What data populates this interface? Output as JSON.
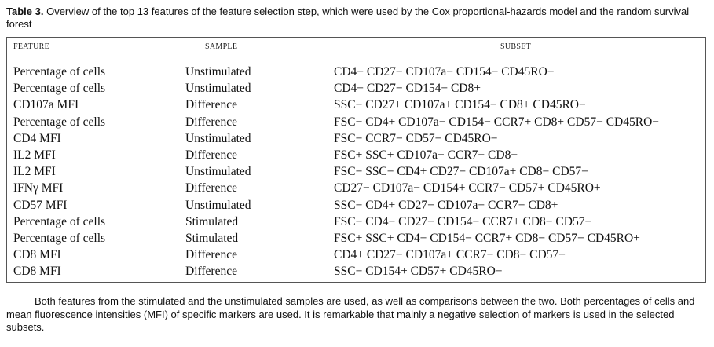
{
  "caption": {
    "label": "Table 3.",
    "text": "Overview of the top 13 features of the feature selection step, which were used by the Cox proportional-hazards model and the random survival forest"
  },
  "table": {
    "headers": {
      "feature": "FEATURE",
      "sample": "SAMPLE",
      "subset": "SUBSET"
    },
    "rows": [
      {
        "feature": "Percentage of cells",
        "sample": "Unstimulated",
        "subset": "CD4− CD27− CD107a− CD154− CD45RO−"
      },
      {
        "feature": "Percentage of cells",
        "sample": "Unstimulated",
        "subset": "CD4− CD27− CD154− CD8+"
      },
      {
        "feature": "CD107a MFI",
        "sample": "Difference",
        "subset": "SSC− CD27+ CD107a+ CD154− CD8+ CD45RO−"
      },
      {
        "feature": "Percentage of cells",
        "sample": "Difference",
        "subset": "FSC− CD4+ CD107a− CD154− CCR7+ CD8+ CD57− CD45RO−"
      },
      {
        "feature": "CD4 MFI",
        "sample": "Unstimulated",
        "subset": "FSC− CCR7− CD57− CD45RO−"
      },
      {
        "feature": "IL2 MFI",
        "sample": "Difference",
        "subset": "FSC+ SSC+ CD107a− CCR7− CD8−"
      },
      {
        "feature": "IL2 MFI",
        "sample": "Unstimulated",
        "subset": "FSC− SSC− CD4+ CD27− CD107a+ CD8− CD57−"
      },
      {
        "feature": "IFNγ MFI",
        "sample": "Difference",
        "subset": "CD27− CD107a− CD154+ CCR7− CD57+ CD45RO+"
      },
      {
        "feature": "CD57 MFI",
        "sample": "Unstimulated",
        "subset": "SSC− CD4+ CD27− CD107a− CCR7− CD8+"
      },
      {
        "feature": "Percentage of cells",
        "sample": "Stimulated",
        "subset": "FSC− CD4− CD27− CD154− CCR7+ CD8− CD57−"
      },
      {
        "feature": "Percentage of cells",
        "sample": "Stimulated",
        "subset": "FSC+ SSC+ CD4− CD154− CCR7+ CD8− CD57− CD45RO+"
      },
      {
        "feature": "CD8 MFI",
        "sample": "Difference",
        "subset": "CD4+ CD27− CD107a+ CCR7− CD8− CD57−"
      },
      {
        "feature": "CD8 MFI",
        "sample": "Difference",
        "subset": "SSC− CD154+ CD57+ CD45RO−"
      }
    ]
  },
  "note": "Both features from the stimulated and the unstimulated samples are used, as well as comparisons between the two. Both percentages of cells and mean fluorescence intensities (MFI) of specific markers are used. It is remarkable that mainly a negative selection of markers is used in the selected subsets."
}
